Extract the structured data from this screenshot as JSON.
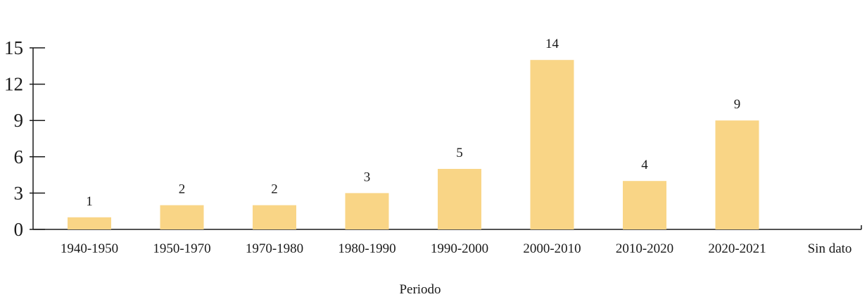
{
  "chart_data": {
    "type": "bar",
    "xlabel": "Periodo",
    "ylabel": "",
    "ylim": [
      0,
      15
    ],
    "yticks": [
      0,
      3,
      6,
      9,
      12,
      15
    ],
    "categories": [
      "1940-1950",
      "1950-1970",
      "1970-1980",
      "1980-1990",
      "1990-2000",
      "2000-2010",
      "2010-2020",
      "2020-2021",
      "Sin dato"
    ],
    "values": [
      1,
      2,
      2,
      3,
      5,
      14,
      4,
      9,
      null
    ],
    "data_labels": [
      "1",
      "2",
      "2",
      "3",
      "5",
      "14",
      "4",
      "9",
      ""
    ],
    "bar_color": "#f9d586",
    "axis_color": "#1a1a1a",
    "grid": false
  }
}
